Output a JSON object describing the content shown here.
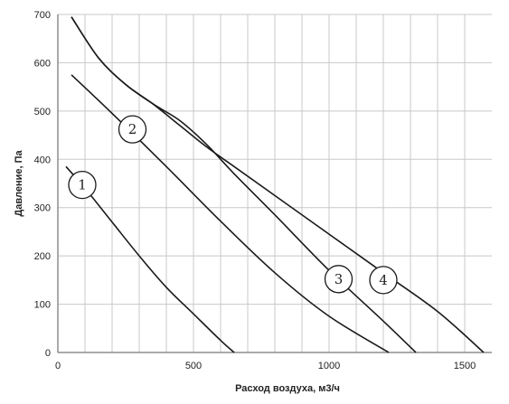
{
  "chart_data": {
    "type": "line",
    "title": "",
    "xlabel": "Расход воздуха, м3/ч",
    "ylabel": "Давление, Па",
    "xlim": [
      0,
      1600
    ],
    "ylim": [
      0,
      700
    ],
    "x_ticks": [
      0,
      500,
      1000,
      1500
    ],
    "y_ticks": [
      0,
      100,
      200,
      300,
      400,
      500,
      600,
      700
    ],
    "x_tick_labels": [
      "0",
      "500",
      "1000",
      "1500"
    ],
    "y_tick_labels": [
      "0",
      "100",
      "200",
      "300",
      "400",
      "500",
      "600",
      "700"
    ],
    "grid": true,
    "series": [
      {
        "label": "1",
        "label_point": [
          90,
          347
        ],
        "points": [
          [
            30,
            385
          ],
          [
            100,
            340
          ],
          [
            200,
            270
          ],
          [
            300,
            200
          ],
          [
            400,
            135
          ],
          [
            500,
            80
          ],
          [
            600,
            25
          ],
          [
            650,
            0
          ]
        ]
      },
      {
        "label": "2",
        "label_point": [
          275,
          462
        ],
        "points": [
          [
            50,
            575
          ],
          [
            200,
            495
          ],
          [
            400,
            385
          ],
          [
            600,
            272
          ],
          [
            800,
            165
          ],
          [
            1000,
            75
          ],
          [
            1220,
            0
          ]
        ]
      },
      {
        "label": "3",
        "label_point": [
          1035,
          152
        ],
        "points": [
          [
            50,
            695
          ],
          [
            150,
            610
          ],
          [
            250,
            555
          ],
          [
            350,
            515
          ],
          [
            450,
            480
          ],
          [
            550,
            430
          ],
          [
            650,
            370
          ],
          [
            800,
            285
          ],
          [
            1000,
            170
          ],
          [
            1200,
            65
          ],
          [
            1320,
            0
          ]
        ]
      },
      {
        "label": "4",
        "label_point": [
          1200,
          150
        ],
        "points": [
          [
            50,
            695
          ],
          [
            150,
            610
          ],
          [
            250,
            555
          ],
          [
            350,
            515
          ],
          [
            450,
            470
          ],
          [
            550,
            425
          ],
          [
            650,
            385
          ],
          [
            800,
            325
          ],
          [
            1000,
            245
          ],
          [
            1200,
            165
          ],
          [
            1400,
            85
          ],
          [
            1570,
            0
          ]
        ]
      }
    ]
  }
}
